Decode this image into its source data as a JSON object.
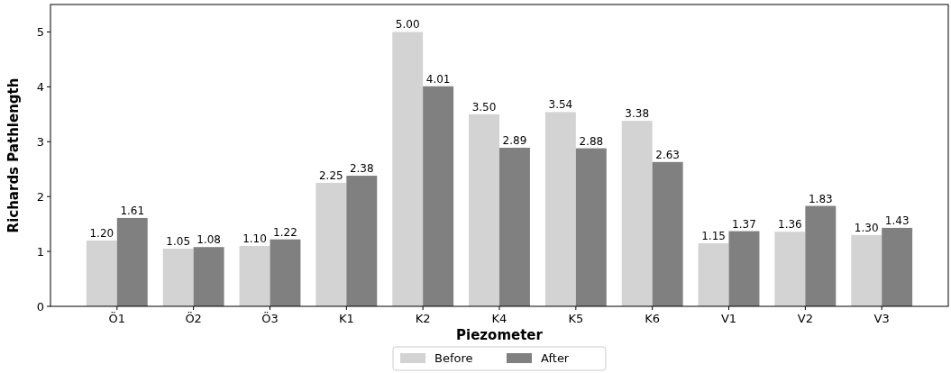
{
  "chart_data": {
    "type": "bar",
    "xlabel": "Piezometer",
    "ylabel": "Richards Pathlength",
    "categories": [
      "Ö1",
      "Ö2",
      "Ö3",
      "K1",
      "K2",
      "K4",
      "K5",
      "K6",
      "V1",
      "V2",
      "V3"
    ],
    "series": [
      {
        "name": "Before",
        "color": "#d3d3d3",
        "values": [
          1.2,
          1.05,
          1.1,
          2.25,
          5.0,
          3.5,
          3.54,
          3.38,
          1.15,
          1.36,
          1.3
        ],
        "value_labels": [
          "1.20",
          "1.05",
          "1.10",
          "2.25",
          "5.00",
          "3.50",
          "3.54",
          "3.38",
          "1.15",
          "1.36",
          "1.30"
        ]
      },
      {
        "name": "After",
        "color": "#808080",
        "values": [
          1.61,
          1.08,
          1.22,
          2.38,
          4.01,
          2.89,
          2.88,
          2.63,
          1.37,
          1.83,
          1.43
        ],
        "value_labels": [
          "1.61",
          "1.08",
          "1.22",
          "2.38",
          "4.01",
          "2.89",
          "2.88",
          "2.63",
          "1.37",
          "1.83",
          "1.43"
        ]
      }
    ],
    "ylim": [
      0,
      5.5
    ],
    "yticks": [
      0,
      1,
      2,
      3,
      4,
      5
    ],
    "legend": "bottom"
  }
}
